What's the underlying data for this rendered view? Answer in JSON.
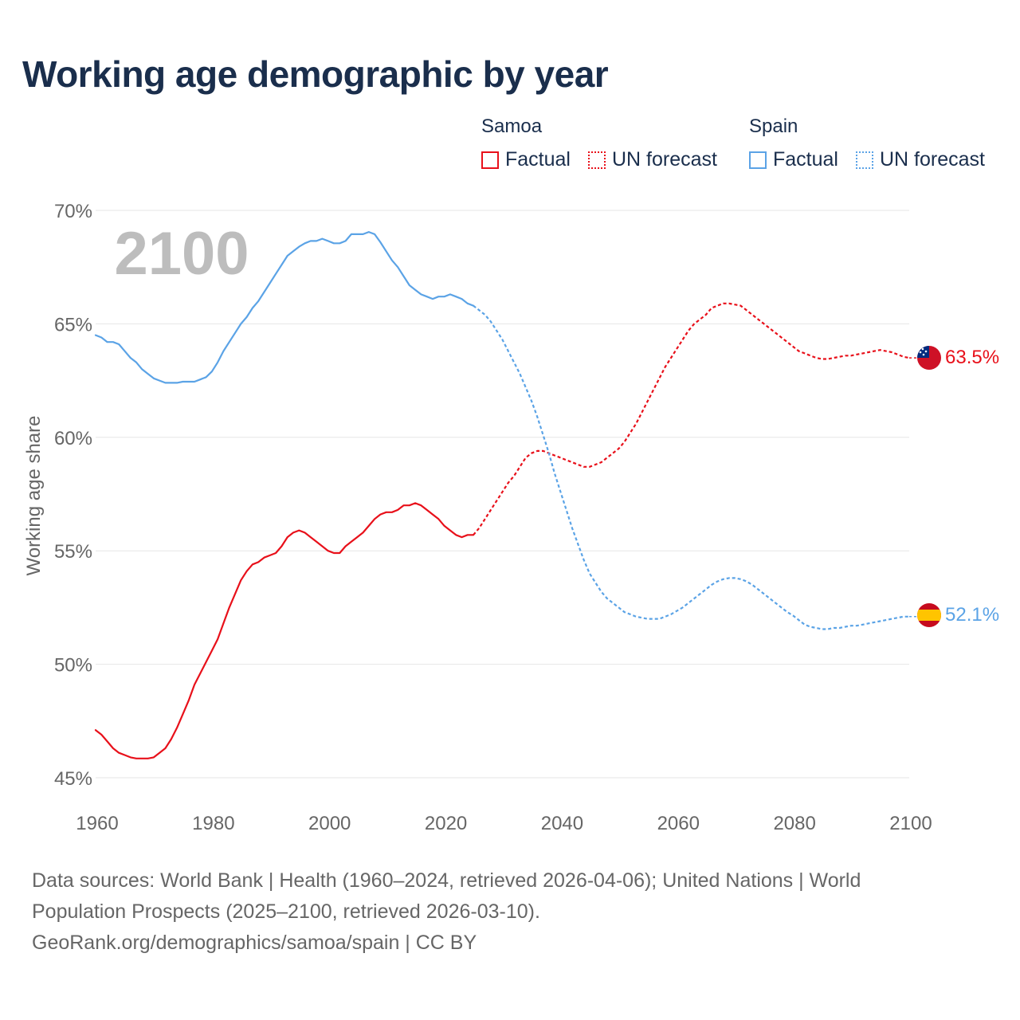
{
  "title": "Working age demographic by year",
  "legend": {
    "groups": [
      {
        "name": "Samoa",
        "color": "#e8101a",
        "factual_label": "Factual",
        "forecast_label": "UN forecast"
      },
      {
        "name": "Spain",
        "color": "#5ba3e6",
        "factual_label": "Factual",
        "forecast_label": "UN forecast"
      }
    ]
  },
  "year_watermark": "2100",
  "footer": {
    "line1": "Data sources: World Bank | Health (1960–2024, retrieved 2026-04-06); United Nations | World",
    "line2": "Population Prospects (2025–2100, retrieved 2026-03-10).",
    "line3": "GeoRank.org/demographics/samoa/spain | CC BY"
  },
  "chart_data": {
    "type": "line",
    "title": "Working age demographic by year",
    "xlabel": "",
    "ylabel": "Working age share",
    "xlim": [
      1960,
      2100
    ],
    "ylim": [
      45,
      70
    ],
    "x_ticks": [
      1960,
      1980,
      2000,
      2020,
      2040,
      2060,
      2080,
      2100
    ],
    "y_ticks": [
      45,
      50,
      55,
      60,
      65,
      70
    ],
    "y_tick_labels": [
      "45%",
      "50%",
      "55%",
      "60%",
      "65%",
      "70%"
    ],
    "grid": true,
    "factual_end_year": 2024,
    "series": [
      {
        "name": "Samoa",
        "color": "#e8101a",
        "end_label": "63.5%",
        "flag": "samoa",
        "points": [
          [
            1960,
            47.1
          ],
          [
            1961,
            46.9
          ],
          [
            1962,
            46.6
          ],
          [
            1963,
            46.3
          ],
          [
            1964,
            46.1
          ],
          [
            1965,
            46.0
          ],
          [
            1966,
            45.9
          ],
          [
            1967,
            45.85
          ],
          [
            1968,
            45.85
          ],
          [
            1969,
            45.85
          ],
          [
            1970,
            45.9
          ],
          [
            1971,
            46.1
          ],
          [
            1972,
            46.3
          ],
          [
            1973,
            46.7
          ],
          [
            1974,
            47.2
          ],
          [
            1975,
            47.8
          ],
          [
            1976,
            48.4
          ],
          [
            1977,
            49.1
          ],
          [
            1978,
            49.6
          ],
          [
            1979,
            50.1
          ],
          [
            1980,
            50.6
          ],
          [
            1981,
            51.1
          ],
          [
            1982,
            51.8
          ],
          [
            1983,
            52.5
          ],
          [
            1984,
            53.1
          ],
          [
            1985,
            53.7
          ],
          [
            1986,
            54.1
          ],
          [
            1987,
            54.4
          ],
          [
            1988,
            54.5
          ],
          [
            1989,
            54.7
          ],
          [
            1990,
            54.8
          ],
          [
            1991,
            54.9
          ],
          [
            1992,
            55.2
          ],
          [
            1993,
            55.6
          ],
          [
            1994,
            55.8
          ],
          [
            1995,
            55.9
          ],
          [
            1996,
            55.8
          ],
          [
            1997,
            55.6
          ],
          [
            1998,
            55.4
          ],
          [
            1999,
            55.2
          ],
          [
            2000,
            55.0
          ],
          [
            2001,
            54.9
          ],
          [
            2002,
            54.9
          ],
          [
            2003,
            55.2
          ],
          [
            2004,
            55.4
          ],
          [
            2005,
            55.6
          ],
          [
            2006,
            55.8
          ],
          [
            2007,
            56.1
          ],
          [
            2008,
            56.4
          ],
          [
            2009,
            56.6
          ],
          [
            2010,
            56.7
          ],
          [
            2011,
            56.7
          ],
          [
            2012,
            56.8
          ],
          [
            2013,
            57.0
          ],
          [
            2014,
            57.0
          ],
          [
            2015,
            57.1
          ],
          [
            2016,
            57.0
          ],
          [
            2017,
            56.8
          ],
          [
            2018,
            56.6
          ],
          [
            2019,
            56.4
          ],
          [
            2020,
            56.1
          ],
          [
            2021,
            55.9
          ],
          [
            2022,
            55.7
          ],
          [
            2023,
            55.6
          ],
          [
            2024,
            55.7
          ],
          [
            2025,
            55.7
          ],
          [
            2026,
            56.0
          ],
          [
            2027,
            56.4
          ],
          [
            2028,
            56.8
          ],
          [
            2029,
            57.2
          ],
          [
            2030,
            57.6
          ],
          [
            2031,
            58.0
          ],
          [
            2032,
            58.3
          ],
          [
            2033,
            58.7
          ],
          [
            2034,
            59.1
          ],
          [
            2035,
            59.3
          ],
          [
            2036,
            59.4
          ],
          [
            2037,
            59.4
          ],
          [
            2038,
            59.3
          ],
          [
            2039,
            59.2
          ],
          [
            2040,
            59.1
          ],
          [
            2041,
            59.0
          ],
          [
            2042,
            58.9
          ],
          [
            2043,
            58.8
          ],
          [
            2044,
            58.7
          ],
          [
            2045,
            58.7
          ],
          [
            2046,
            58.8
          ],
          [
            2047,
            58.9
          ],
          [
            2048,
            59.1
          ],
          [
            2049,
            59.3
          ],
          [
            2050,
            59.5
          ],
          [
            2051,
            59.8
          ],
          [
            2052,
            60.2
          ],
          [
            2053,
            60.6
          ],
          [
            2054,
            61.1
          ],
          [
            2055,
            61.6
          ],
          [
            2056,
            62.1
          ],
          [
            2057,
            62.6
          ],
          [
            2058,
            63.1
          ],
          [
            2059,
            63.5
          ],
          [
            2060,
            63.9
          ],
          [
            2061,
            64.3
          ],
          [
            2062,
            64.7
          ],
          [
            2063,
            65.0
          ],
          [
            2064,
            65.2
          ],
          [
            2065,
            65.4
          ],
          [
            2066,
            65.7
          ],
          [
            2067,
            65.8
          ],
          [
            2068,
            65.9
          ],
          [
            2069,
            65.9
          ],
          [
            2070,
            65.85
          ],
          [
            2071,
            65.8
          ],
          [
            2072,
            65.6
          ],
          [
            2073,
            65.4
          ],
          [
            2074,
            65.2
          ],
          [
            2075,
            65.0
          ],
          [
            2076,
            64.8
          ],
          [
            2077,
            64.6
          ],
          [
            2078,
            64.4
          ],
          [
            2079,
            64.2
          ],
          [
            2080,
            64.0
          ],
          [
            2081,
            63.8
          ],
          [
            2082,
            63.7
          ],
          [
            2083,
            63.6
          ],
          [
            2084,
            63.5
          ],
          [
            2085,
            63.45
          ],
          [
            2086,
            63.45
          ],
          [
            2087,
            63.5
          ],
          [
            2088,
            63.55
          ],
          [
            2089,
            63.6
          ],
          [
            2090,
            63.6
          ],
          [
            2091,
            63.65
          ],
          [
            2092,
            63.7
          ],
          [
            2093,
            63.75
          ],
          [
            2094,
            63.8
          ],
          [
            2095,
            63.85
          ],
          [
            2096,
            63.8
          ],
          [
            2097,
            63.75
          ],
          [
            2098,
            63.65
          ],
          [
            2099,
            63.55
          ],
          [
            2100,
            63.5
          ]
        ]
      },
      {
        "name": "Spain",
        "color": "#5ba3e6",
        "end_label": "52.1%",
        "flag": "spain",
        "points": [
          [
            1960,
            64.5
          ],
          [
            1961,
            64.4
          ],
          [
            1962,
            64.2
          ],
          [
            1963,
            64.2
          ],
          [
            1964,
            64.1
          ],
          [
            1965,
            63.8
          ],
          [
            1966,
            63.5
          ],
          [
            1967,
            63.3
          ],
          [
            1968,
            63.0
          ],
          [
            1969,
            62.8
          ],
          [
            1970,
            62.6
          ],
          [
            1971,
            62.5
          ],
          [
            1972,
            62.4
          ],
          [
            1973,
            62.4
          ],
          [
            1974,
            62.4
          ],
          [
            1975,
            62.45
          ],
          [
            1976,
            62.45
          ],
          [
            1977,
            62.45
          ],
          [
            1978,
            62.55
          ],
          [
            1979,
            62.65
          ],
          [
            1980,
            62.9
          ],
          [
            1981,
            63.3
          ],
          [
            1982,
            63.8
          ],
          [
            1983,
            64.2
          ],
          [
            1984,
            64.6
          ],
          [
            1985,
            65.0
          ],
          [
            1986,
            65.3
          ],
          [
            1987,
            65.7
          ],
          [
            1988,
            66.0
          ],
          [
            1989,
            66.4
          ],
          [
            1990,
            66.8
          ],
          [
            1991,
            67.2
          ],
          [
            1992,
            67.6
          ],
          [
            1993,
            68.0
          ],
          [
            1994,
            68.2
          ],
          [
            1995,
            68.4
          ],
          [
            1996,
            68.55
          ],
          [
            1997,
            68.65
          ],
          [
            1998,
            68.65
          ],
          [
            1999,
            68.75
          ],
          [
            2000,
            68.65
          ],
          [
            2001,
            68.55
          ],
          [
            2002,
            68.55
          ],
          [
            2003,
            68.65
          ],
          [
            2004,
            68.95
          ],
          [
            2005,
            68.95
          ],
          [
            2006,
            68.95
          ],
          [
            2007,
            69.05
          ],
          [
            2008,
            68.95
          ],
          [
            2009,
            68.6
          ],
          [
            2010,
            68.2
          ],
          [
            2011,
            67.8
          ],
          [
            2012,
            67.5
          ],
          [
            2013,
            67.1
          ],
          [
            2014,
            66.7
          ],
          [
            2015,
            66.5
          ],
          [
            2016,
            66.3
          ],
          [
            2017,
            66.2
          ],
          [
            2018,
            66.1
          ],
          [
            2019,
            66.2
          ],
          [
            2020,
            66.2
          ],
          [
            2021,
            66.3
          ],
          [
            2022,
            66.2
          ],
          [
            2023,
            66.1
          ],
          [
            2024,
            65.9
          ],
          [
            2025,
            65.8
          ],
          [
            2026,
            65.6
          ],
          [
            2027,
            65.4
          ],
          [
            2028,
            65.1
          ],
          [
            2029,
            64.7
          ],
          [
            2030,
            64.3
          ],
          [
            2031,
            63.8
          ],
          [
            2032,
            63.3
          ],
          [
            2033,
            62.8
          ],
          [
            2034,
            62.2
          ],
          [
            2035,
            61.6
          ],
          [
            2036,
            60.9
          ],
          [
            2037,
            60.1
          ],
          [
            2038,
            59.3
          ],
          [
            2039,
            58.4
          ],
          [
            2040,
            57.6
          ],
          [
            2041,
            56.8
          ],
          [
            2042,
            56.0
          ],
          [
            2043,
            55.3
          ],
          [
            2044,
            54.6
          ],
          [
            2045,
            54.0
          ],
          [
            2046,
            53.6
          ],
          [
            2047,
            53.2
          ],
          [
            2048,
            52.9
          ],
          [
            2049,
            52.7
          ],
          [
            2050,
            52.5
          ],
          [
            2051,
            52.3
          ],
          [
            2052,
            52.2
          ],
          [
            2053,
            52.1
          ],
          [
            2054,
            52.05
          ],
          [
            2055,
            52.0
          ],
          [
            2056,
            52.0
          ],
          [
            2057,
            52.0
          ],
          [
            2058,
            52.1
          ],
          [
            2059,
            52.2
          ],
          [
            2060,
            52.35
          ],
          [
            2061,
            52.5
          ],
          [
            2062,
            52.7
          ],
          [
            2063,
            52.9
          ],
          [
            2064,
            53.1
          ],
          [
            2065,
            53.3
          ],
          [
            2066,
            53.5
          ],
          [
            2067,
            53.65
          ],
          [
            2068,
            53.75
          ],
          [
            2069,
            53.8
          ],
          [
            2070,
            53.8
          ],
          [
            2071,
            53.75
          ],
          [
            2072,
            53.65
          ],
          [
            2073,
            53.5
          ],
          [
            2074,
            53.3
          ],
          [
            2075,
            53.1
          ],
          [
            2076,
            52.9
          ],
          [
            2077,
            52.7
          ],
          [
            2078,
            52.5
          ],
          [
            2079,
            52.3
          ],
          [
            2080,
            52.15
          ],
          [
            2081,
            51.95
          ],
          [
            2082,
            51.75
          ],
          [
            2083,
            51.65
          ],
          [
            2084,
            51.6
          ],
          [
            2085,
            51.55
          ],
          [
            2086,
            51.55
          ],
          [
            2087,
            51.6
          ],
          [
            2088,
            51.6
          ],
          [
            2089,
            51.65
          ],
          [
            2090,
            51.7
          ],
          [
            2091,
            51.7
          ],
          [
            2092,
            51.75
          ],
          [
            2093,
            51.8
          ],
          [
            2094,
            51.85
          ],
          [
            2095,
            51.9
          ],
          [
            2096,
            51.95
          ],
          [
            2097,
            52.0
          ],
          [
            2098,
            52.05
          ],
          [
            2099,
            52.1
          ],
          [
            2100,
            52.1
          ]
        ]
      }
    ]
  }
}
